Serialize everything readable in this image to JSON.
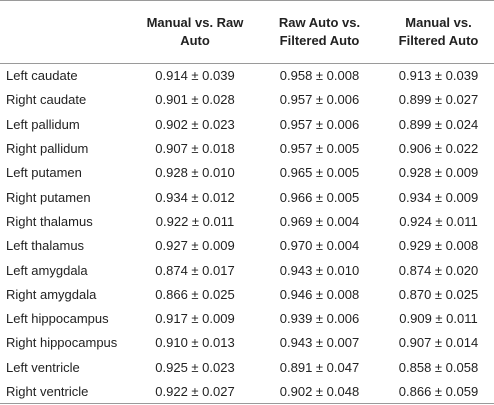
{
  "headers": [
    "",
    "Manual vs. Raw Auto",
    "Raw Auto vs. Filtered Auto",
    "Manual vs. Filtered Auto"
  ],
  "rows": [
    {
      "label": "Left caudate",
      "values": [
        "0.914 ± 0.039",
        "0.958 ± 0.008",
        "0.913 ± 0.039"
      ]
    },
    {
      "label": "Right caudate",
      "values": [
        "0.901 ± 0.028",
        "0.957 ± 0.006",
        "0.899 ± 0.027"
      ]
    },
    {
      "label": "Left pallidum",
      "values": [
        "0.902 ± 0.023",
        "0.957 ± 0.006",
        "0.899 ± 0.024"
      ]
    },
    {
      "label": "Right pallidum",
      "values": [
        "0.907 ± 0.018",
        "0.957 ± 0.005",
        "0.906 ± 0.022"
      ]
    },
    {
      "label": "Left putamen",
      "values": [
        "0.928 ± 0.010",
        "0.965 ± 0.005",
        "0.928 ± 0.009"
      ]
    },
    {
      "label": "Right putamen",
      "values": [
        "0.934 ± 0.012",
        "0.966 ± 0.005",
        "0.934 ± 0.009"
      ]
    },
    {
      "label": "Right thalamus",
      "values": [
        "0.922 ± 0.011",
        "0.969 ± 0.004",
        "0.924 ± 0.011"
      ]
    },
    {
      "label": "Left thalamus",
      "values": [
        "0.927 ± 0.009",
        "0.970 ± 0.004",
        "0.929 ± 0.008"
      ]
    },
    {
      "label": "Left amygdala",
      "values": [
        "0.874 ± 0.017",
        "0.943 ± 0.010",
        "0.874 ± 0.020"
      ]
    },
    {
      "label": "Right amygdala",
      "values": [
        "0.866 ± 0.025",
        "0.946 ± 0.008",
        "0.870 ± 0.025"
      ]
    },
    {
      "label": "Left hippocampus",
      "values": [
        "0.917 ± 0.009",
        "0.939 ± 0.006",
        "0.909 ± 0.011"
      ]
    },
    {
      "label": "Right hippocampus",
      "values": [
        "0.910 ± 0.013",
        "0.943 ± 0.007",
        "0.907 ± 0.014"
      ]
    },
    {
      "label": "Left ventricle",
      "values": [
        "0.925 ± 0.023",
        "0.891 ± 0.047",
        "0.858 ± 0.058"
      ]
    },
    {
      "label": "Right ventricle",
      "values": [
        "0.922 ± 0.027",
        "0.902 ± 0.048",
        "0.866 ± 0.059"
      ]
    }
  ]
}
